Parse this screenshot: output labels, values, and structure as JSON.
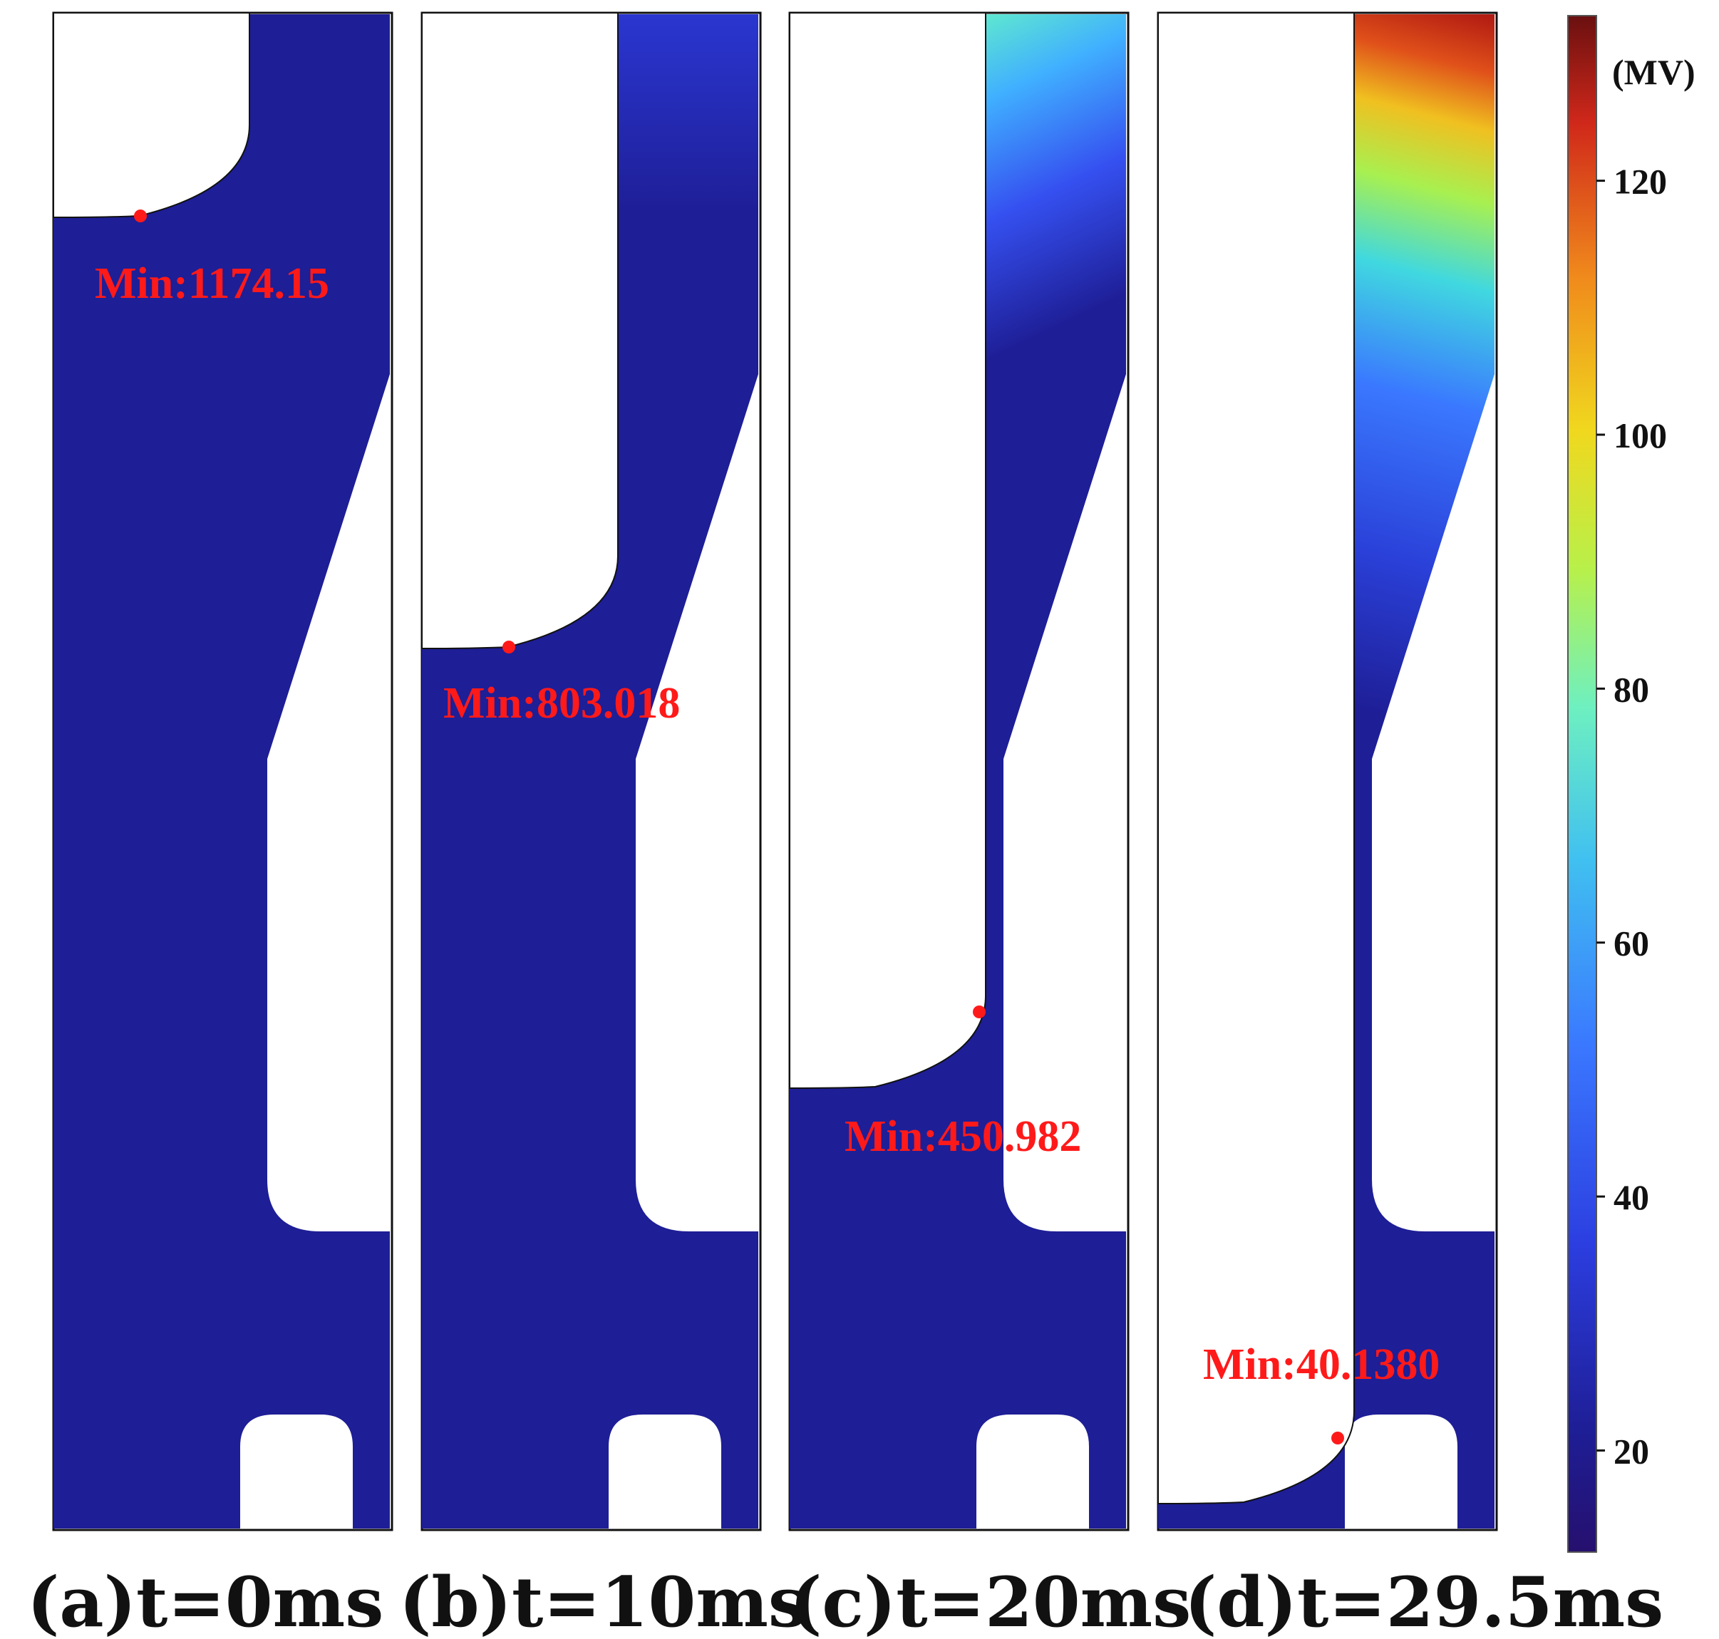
{
  "colors": {
    "base": "#1e1e96",
    "marker": "#ff1a1a",
    "frame": "#111111",
    "colormap": [
      "#2a0c78",
      "#1e1e96",
      "#3b5bff",
      "#40b9ff",
      "#5fe8d0",
      "#b8f04a",
      "#f2d21e",
      "#f08a1c",
      "#d7301a",
      "#6e1010"
    ]
  },
  "panels": [
    {
      "caption": "(a)t=0ms",
      "min_label": "Min:1174.15",
      "time_ms": 0
    },
    {
      "caption": "(b)t=10ms",
      "min_label": "Min:803.018",
      "time_ms": 10
    },
    {
      "caption": "(c)t=20ms",
      "min_label": "Min:450.982",
      "time_ms": 20
    },
    {
      "caption": "(d)t=29.5ms",
      "min_label": "Min:40.1380",
      "time_ms": 29.5
    }
  ],
  "colorbar": {
    "unit": "(MV)",
    "ticks": [
      "120",
      "100",
      "80",
      "60",
      "40",
      "20"
    ],
    "range": [
      12,
      133
    ]
  }
}
